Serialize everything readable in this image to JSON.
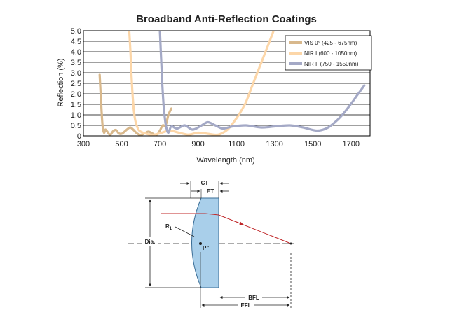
{
  "chart_data": {
    "type": "line",
    "title": "Broadband Anti-Reflection Coatings",
    "xlabel": "Wavelength (nm)",
    "ylabel": "Reflection (%)",
    "xlim": [
      300,
      1800
    ],
    "ylim": [
      0,
      5
    ],
    "xticks": [
      "300",
      "500",
      "700",
      "900",
      "1100",
      "1300",
      "1500",
      "1700"
    ],
    "yticks": [
      "0",
      "0.5",
      "1.0",
      "1.5",
      "2.0",
      "2.5",
      "3.0",
      "3.5",
      "4.0",
      "4.5",
      "5.0"
    ],
    "grid": true,
    "legend": "top-right",
    "series": [
      {
        "name": "VIS 0° (425 - 675nm)",
        "color": "#d8b88c",
        "x": [
          385,
          393,
          400,
          408,
          415,
          425,
          440,
          455,
          470,
          485,
          500,
          515,
          530,
          545,
          560,
          580,
          600,
          620,
          640,
          660,
          675,
          690,
          700,
          715,
          730,
          745,
          760
        ],
        "y": [
          2.9,
          1.5,
          0.5,
          0.15,
          0.3,
          0.2,
          0.05,
          0.22,
          0.28,
          0.12,
          0.1,
          0.2,
          0.32,
          0.4,
          0.3,
          0.12,
          0.05,
          0.12,
          0.2,
          0.12,
          0.05,
          0.1,
          0.25,
          0.5,
          0.5,
          1.0,
          1.3
        ]
      },
      {
        "name": "NIR I (600 - 1050nm)",
        "color": "#fcd6a8",
        "x": [
          540,
          546,
          552,
          560,
          570,
          585,
          600,
          630,
          660,
          700,
          750,
          800,
          850,
          900,
          950,
          1000,
          1030,
          1060,
          1090,
          1120,
          1150,
          1180,
          1210,
          1240,
          1270,
          1295
        ],
        "y": [
          5.0,
          4.0,
          2.8,
          1.6,
          0.8,
          0.35,
          0.2,
          0.1,
          0.05,
          0.12,
          0.25,
          0.15,
          0.06,
          0.15,
          0.1,
          0.05,
          0.15,
          0.35,
          0.7,
          1.1,
          1.6,
          2.3,
          3.0,
          3.7,
          4.4,
          5.0
        ]
      },
      {
        "name": "NIR II (750 - 1550nm)",
        "color": "#a4a9c6",
        "x": [
          700,
          705,
          712,
          720,
          728,
          735,
          745,
          760,
          790,
          830,
          870,
          910,
          950,
          990,
          1030,
          1080,
          1150,
          1230,
          1300,
          1380,
          1450,
          1520,
          1570,
          1610,
          1650,
          1690,
          1730,
          1770
        ],
        "y": [
          5.0,
          4.0,
          2.6,
          1.4,
          0.7,
          0.35,
          0.15,
          0.45,
          0.35,
          0.5,
          0.3,
          0.45,
          0.65,
          0.5,
          0.35,
          0.45,
          0.5,
          0.4,
          0.45,
          0.5,
          0.4,
          0.25,
          0.35,
          0.6,
          0.95,
          1.4,
          1.9,
          2.4
        ]
      }
    ]
  },
  "lens_diagram": {
    "labels": {
      "ct": "CT",
      "et": "ET",
      "radius": "R",
      "radius_sub": "1",
      "diameter": "Dia.",
      "principal_point": "P\"",
      "bfl": "BFL",
      "efl": "EFL"
    },
    "colors": {
      "lens_fill": "#a9cfea",
      "lens_stroke": "#3a6d96",
      "ray": "#c0282a"
    }
  }
}
